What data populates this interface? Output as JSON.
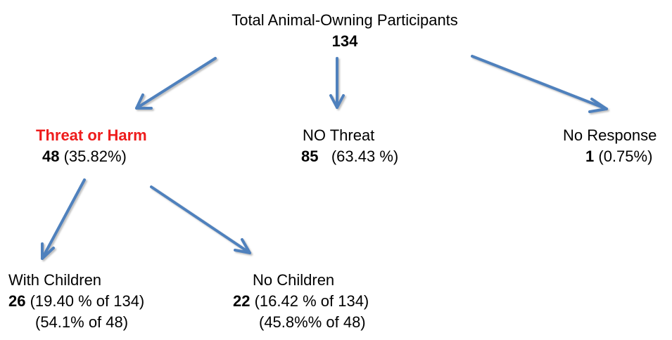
{
  "root": {
    "title": "Total Animal-Owning Participants",
    "count": "134"
  },
  "threat": {
    "label": "Threat or Harm",
    "count": "48",
    "pct": " (35.82%)"
  },
  "no_threat": {
    "label": "NO Threat",
    "count": "85",
    "pct": "   (63.43 %)"
  },
  "no_response": {
    "label": "No Response",
    "count": "1",
    "pct": " (0.75%)"
  },
  "with_children": {
    "label": "With Children",
    "count": "26",
    "pct_total": " (19.40 % of 134)",
    "pct_group": "(54.1% of 48)"
  },
  "no_children": {
    "label": "No Children",
    "count": "22",
    "pct_total": " (16.42 % of 134)",
    "pct_group": "(45.8%% of 48)"
  },
  "colors": {
    "arrow": "#4f81bd",
    "threat_label": "#ee1c1c"
  }
}
